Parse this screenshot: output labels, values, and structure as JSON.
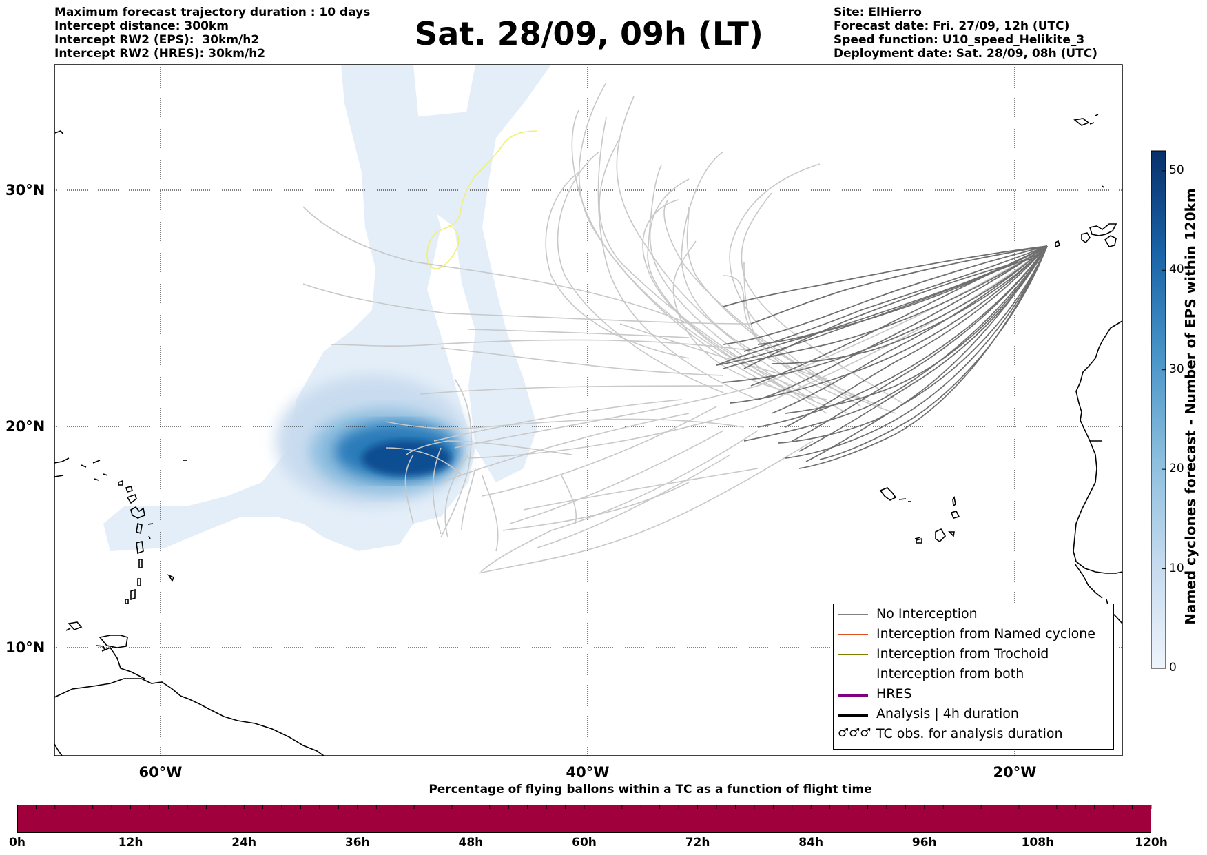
{
  "header_left": [
    "Maximum forecast trajectory duration : 10 days",
    "Intercept distance: 300km",
    "Intercept RW2 (EPS):  30km/h2",
    "Intercept RW2 (HRES): 30km/h2"
  ],
  "title": "Sat. 28/09, 09h (LT)",
  "header_right": [
    "Site: ElHierro",
    "Forecast date: Fri. 27/09, 12h (UTC)",
    "Speed function: U10_speed_Helikite_3",
    "Deployment date: Sat. 28/09, 08h (UTC)"
  ],
  "map": {
    "lat_labels": [
      "30°N",
      "20°N",
      "10°N"
    ],
    "lon_labels": [
      "60°W",
      "40°W",
      "20°W"
    ]
  },
  "legend": {
    "items": [
      {
        "label": "No Interception",
        "color": "#808080"
      },
      {
        "label": "Interception from Named cyclone",
        "color": "#e0501e"
      },
      {
        "label": "Interception from Trochoid",
        "color": "#808000"
      },
      {
        "label": "Interception from both",
        "color": "#2e8b2e"
      },
      {
        "label": "HRES",
        "color": "#800080"
      },
      {
        "label": "Analysis | 4h duration",
        "color": "#000000"
      },
      {
        "label": "TC obs. for analysis duration",
        "symbol": "♂♂♂"
      }
    ]
  },
  "colorbar": {
    "label": "Named cyclones forecast - Number of EPS within 120km",
    "ticks": [
      "0",
      "10",
      "20",
      "30",
      "40",
      "50"
    ],
    "min": 0,
    "max": 52
  },
  "flight_bar": {
    "title": "Percentage of flying ballons within a TC as a function of flight time",
    "color": "#a0003c",
    "ticks": [
      "0h",
      "12h",
      "24h",
      "36h",
      "48h",
      "60h",
      "72h",
      "84h",
      "96h",
      "108h",
      "120h"
    ]
  }
}
